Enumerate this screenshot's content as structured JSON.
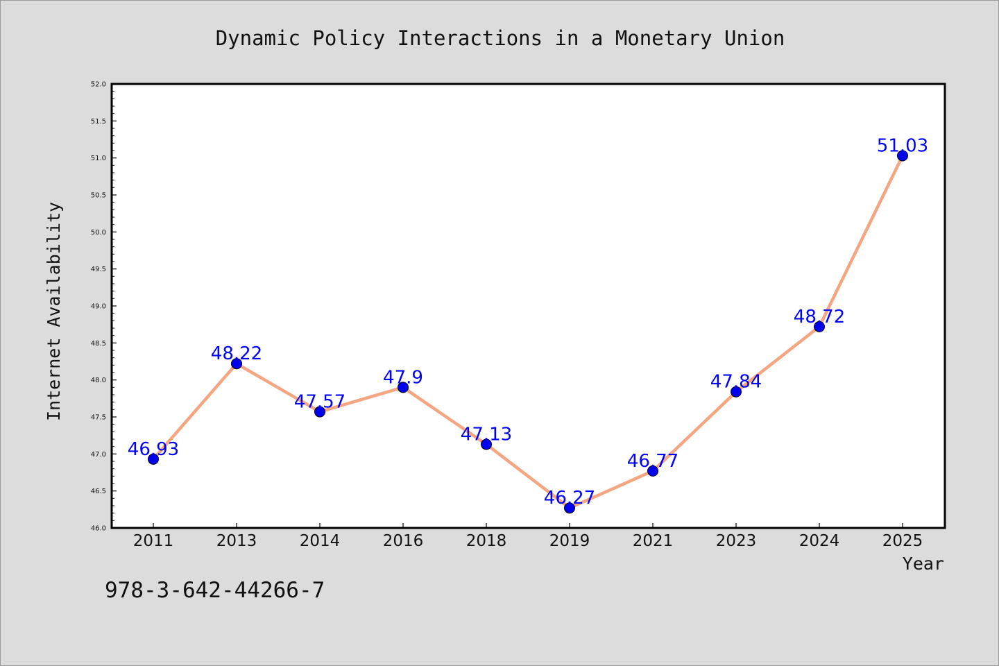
{
  "chart_data": {
    "type": "line",
    "title": "Dynamic Policy Interactions in a Monetary Union",
    "xlabel": "Year",
    "ylabel": "Internet Availability",
    "categories": [
      "2011",
      "2013",
      "2014",
      "2016",
      "2018",
      "2019",
      "2021",
      "2023",
      "2024",
      "2025"
    ],
    "values": [
      46.93,
      48.22,
      47.57,
      47.9,
      47.13,
      46.27,
      46.77,
      47.84,
      48.72,
      51.03
    ],
    "data_labels": [
      "46.93",
      "48.22",
      "47.57",
      "47.9",
      "47.13",
      "46.27",
      "46.77",
      "47.84",
      "48.72",
      "51.03"
    ],
    "ylim": [
      46.0,
      52.0
    ],
    "yticks": [
      "46.0",
      "46.5",
      "47.0",
      "47.5",
      "48.0",
      "48.5",
      "49.0",
      "49.5",
      "50.0",
      "50.5",
      "51.0",
      "51.5",
      "52.0"
    ],
    "grid": false,
    "legend": "none",
    "colors": {
      "line": "#f4a582",
      "marker": "#0000ee",
      "label": "#0000ff",
      "figure_bg": "#dcdcdc",
      "plot_bg": "#ffffff"
    }
  },
  "footer": {
    "code": "978-3-642-44266-7"
  }
}
